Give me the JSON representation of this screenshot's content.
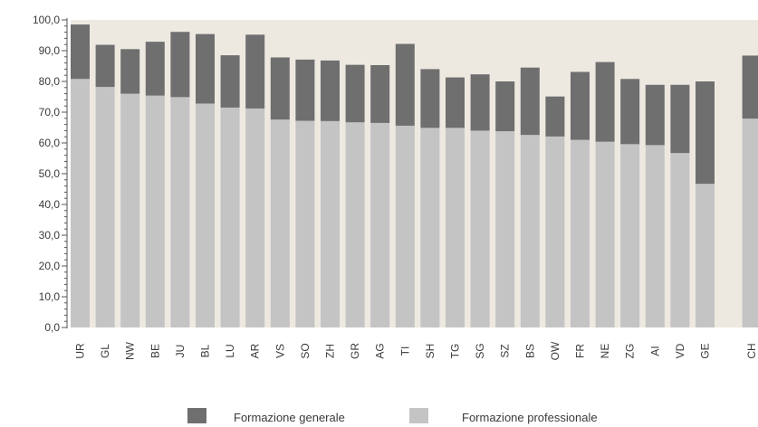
{
  "chart_data": {
    "type": "bar",
    "stacked": true,
    "categories": [
      "UR",
      "GL",
      "NW",
      "BE",
      "JU",
      "BL",
      "LU",
      "AR",
      "VS",
      "SO",
      "ZH",
      "GR",
      "AG",
      "TI",
      "SH",
      "TG",
      "SG",
      "SZ",
      "BS",
      "OW",
      "FR",
      "NE",
      "ZG",
      "AI",
      "VD",
      "GE",
      "CH"
    ],
    "series": [
      {
        "name": "Formazione professionale",
        "color": "#c4c4c4",
        "values": [
          80.8,
          78.2,
          76.0,
          75.4,
          74.9,
          72.8,
          71.5,
          71.2,
          67.6,
          67.2,
          67.1,
          66.7,
          66.5,
          65.6,
          64.9,
          64.9,
          64.0,
          63.8,
          62.6,
          62.1,
          61.0,
          60.4,
          59.6,
          59.3,
          56.7,
          46.7,
          67.9
        ]
      },
      {
        "name": "Formazione generale",
        "color": "#6f6f6f",
        "values": [
          17.7,
          13.7,
          14.5,
          17.5,
          21.2,
          22.6,
          17.0,
          24.0,
          20.2,
          19.9,
          19.7,
          18.7,
          18.8,
          26.6,
          19.1,
          16.4,
          18.3,
          16.2,
          21.9,
          13.0,
          22.1,
          25.9,
          21.2,
          19.6,
          22.2,
          33.3,
          20.5
        ]
      }
    ],
    "ylim": [
      0,
      100
    ],
    "yticks": [
      "0,0",
      "10,0",
      "20,0",
      "30,0",
      "40,0",
      "50,0",
      "60,0",
      "70,0",
      "80,0",
      "90,0",
      "100,0"
    ],
    "grid": false,
    "legend_position": "bottom"
  },
  "colors": {
    "plot_background": "#ede9e1",
    "general": "#6f6f6f",
    "professional": "#c4c4c4",
    "axis": "#555555"
  }
}
